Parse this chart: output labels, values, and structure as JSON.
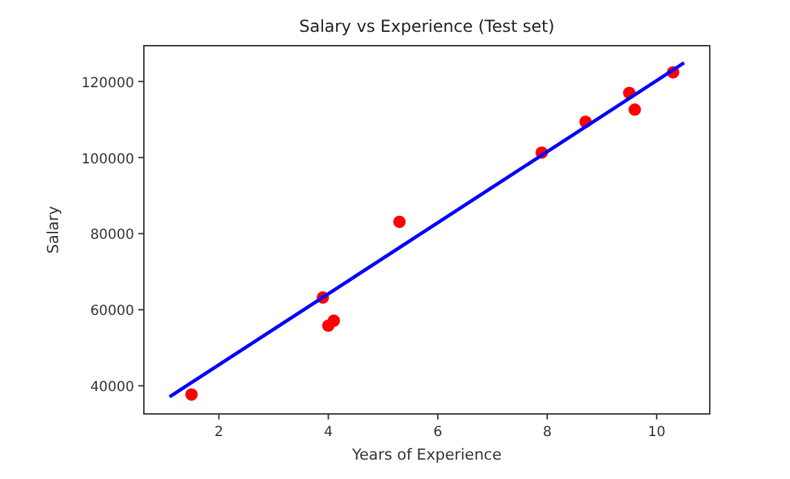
{
  "chart_data": {
    "type": "scatter",
    "title": "Salary vs Experience (Test set)",
    "xlabel": "Years of Experience",
    "ylabel": "Salary",
    "xlim": [
      0.63,
      10.97
    ],
    "ylim": [
      32600,
      129400
    ],
    "xticks": [
      2,
      4,
      6,
      8,
      10
    ],
    "yticks": [
      40000,
      60000,
      80000,
      100000,
      120000
    ],
    "grid": false,
    "series": [
      {
        "color": "#ff0000",
        "marker": "circle",
        "x": [
          1.5,
          10.3,
          4.1,
          3.9,
          9.5,
          8.7,
          9.6,
          4.0,
          5.3,
          7.9
        ],
        "values": [
          37700,
          122400,
          57100,
          63200,
          117000,
          109400,
          112600,
          55800,
          83100,
          101300
        ]
      },
      {
        "type": "line",
        "color": "#0000ff",
        "x": [
          1.1,
          10.5
        ],
        "values": [
          37100,
          124900
        ],
        "line_style": "solid",
        "marker": "none"
      }
    ]
  }
}
